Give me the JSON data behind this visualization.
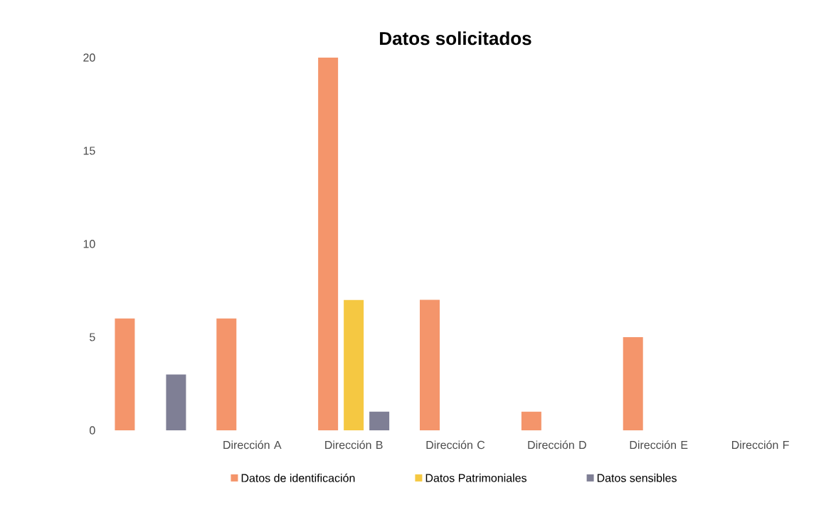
{
  "chart_data": {
    "type": "bar",
    "title": "Datos solicitados",
    "categories": [
      null,
      "Dirección A",
      "Dirección B",
      "Dirección C",
      "Dirección D",
      "Dirección E",
      "Dirección F"
    ],
    "series": [
      {
        "name": "Datos de identificación",
        "color": "#f4956b",
        "values": [
          6,
          6,
          20,
          7,
          1,
          5,
          null
        ]
      },
      {
        "name": "Datos Patrimoniales",
        "color": "#f5c842",
        "values": [
          null,
          null,
          7,
          null,
          null,
          null,
          null
        ]
      },
      {
        "name": "Datos sensibles",
        "color": "#7f7f95",
        "values": [
          3,
          null,
          1,
          null,
          null,
          null,
          null
        ]
      }
    ],
    "ylim": [
      0,
      20
    ],
    "yticks": [
      0,
      5,
      10,
      15,
      20
    ],
    "grid": false,
    "legend": "bottom"
  }
}
